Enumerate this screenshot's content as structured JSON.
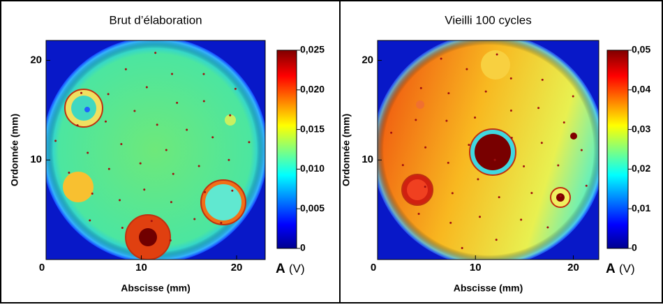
{
  "chart_data": [
    {
      "type": "heatmap",
      "title": "Brut d’élaboration",
      "x_label": "Abscisse (mm)",
      "y_label": "Ordonnée (mm)",
      "xlim": [
        0,
        23
      ],
      "ylim": [
        0,
        22
      ],
      "xticks": [
        0,
        10,
        20
      ],
      "yticks": [
        10,
        20
      ],
      "colorbar": {
        "lim": [
          0,
          0.025
        ],
        "ticks": [
          0,
          {
            "value": 0.005,
            "label": "0,005"
          },
          {
            "value": 0.01,
            "label": "0,010"
          },
          {
            "value": 0.015,
            "label": "0,015"
          },
          {
            "value": 0.02,
            "label": "0,020"
          },
          {
            "value": 0.025,
            "label": "0,025"
          }
        ],
        "label_symbol": "A",
        "label_unit": "(V)"
      }
    },
    {
      "type": "heatmap",
      "title": "Vieilli 100 cycles",
      "x_label": "Abscisse (mm)",
      "y_label": "Ordonnée (mm)",
      "xlim": [
        0,
        22.6
      ],
      "ylim": [
        0,
        22
      ],
      "xticks": [
        0,
        10,
        20
      ],
      "yticks": [
        10,
        20
      ],
      "colorbar": {
        "lim": [
          0,
          0.05
        ],
        "ticks": [
          0,
          {
            "value": 0.01,
            "label": "0,01"
          },
          {
            "value": 0.02,
            "label": "0,02"
          },
          {
            "value": 0.03,
            "label": "0,03"
          },
          {
            "value": 0.04,
            "label": "0,04"
          },
          {
            "value": 0.05,
            "label": "0,05"
          }
        ],
        "label_symbol": "A",
        "label_unit": "(V)"
      }
    }
  ]
}
